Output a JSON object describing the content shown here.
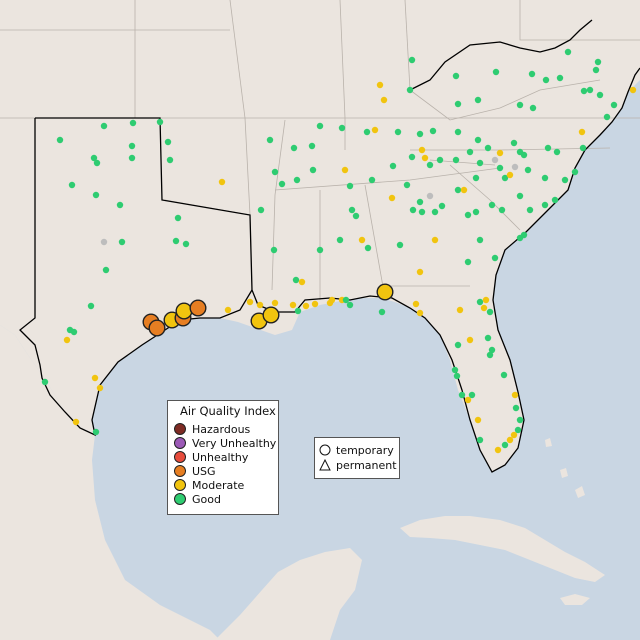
{
  "legend": {
    "title": "Air Quality Index",
    "categories": [
      {
        "label": "Hazardous",
        "color": "#7e2b24"
      },
      {
        "label": "Very Unhealthy",
        "color": "#9b59b6"
      },
      {
        "label": "Unhealthy",
        "color": "#e74c3c"
      },
      {
        "label": "USG",
        "color": "#e67e22"
      },
      {
        "label": "Moderate",
        "color": "#f1c40f"
      },
      {
        "label": "Good",
        "color": "#2ecc71"
      }
    ]
  },
  "shape_legend": {
    "items": [
      {
        "label": "temporary",
        "shape": "circle-icon"
      },
      {
        "label": "permanent",
        "shape": "triangle-icon"
      }
    ]
  },
  "colors": {
    "water": "#c9d6e3",
    "land": "#ebe5df",
    "border": "#b9b2ab",
    "coast": "#000000",
    "no_data": "#bdbdbd"
  }
}
